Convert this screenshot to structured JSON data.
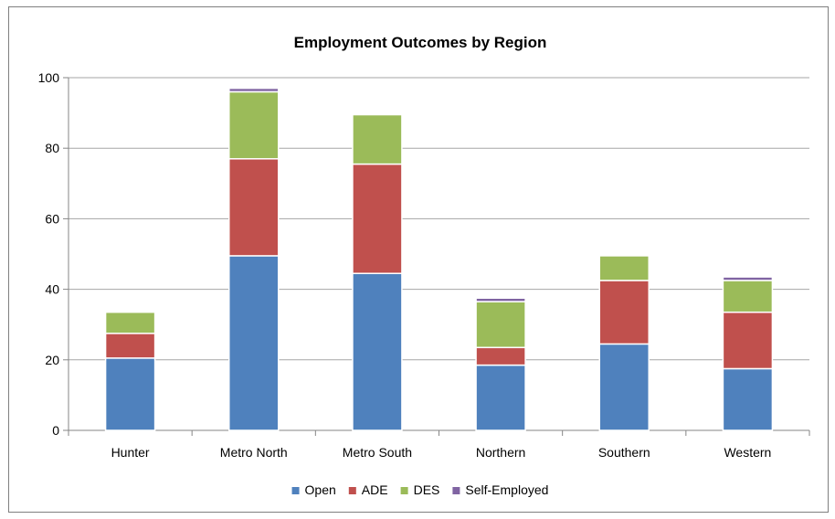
{
  "chart_data": {
    "type": "bar",
    "stacked": true,
    "title": "Employment Outcomes by Region",
    "xlabel": "",
    "ylabel": "",
    "ylim": [
      0,
      100
    ],
    "yticks": [
      0,
      20,
      40,
      60,
      80,
      100
    ],
    "grid": true,
    "legend_position": "bottom",
    "categories": [
      "Hunter",
      "Metro North",
      "Metro South",
      "Northern",
      "Southern",
      "Western"
    ],
    "series": [
      {
        "name": "Open",
        "color": "#4f81bd",
        "values": [
          20.5,
          49.5,
          44.5,
          18.5,
          24.5,
          17.5
        ]
      },
      {
        "name": "ADE",
        "color": "#c0504d",
        "values": [
          7,
          27.5,
          31,
          5,
          18,
          16
        ]
      },
      {
        "name": "DES",
        "color": "#9bbb59",
        "values": [
          6,
          19,
          14,
          13,
          7,
          9
        ]
      },
      {
        "name": "Self-Employed",
        "color": "#8064a2",
        "values": [
          0,
          1,
          0,
          1,
          0,
          1
        ]
      }
    ]
  }
}
